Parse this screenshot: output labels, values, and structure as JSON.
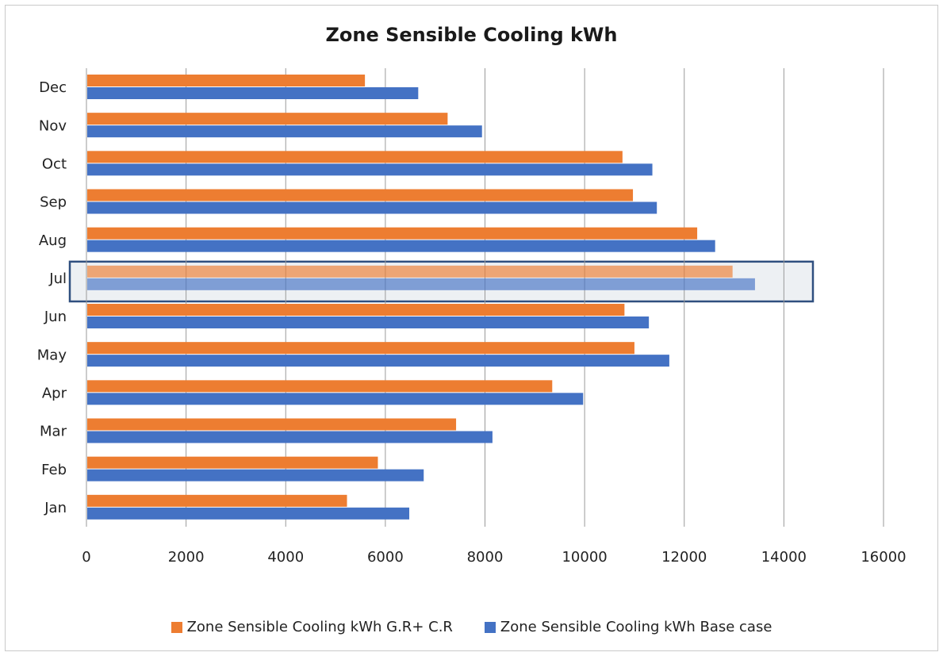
{
  "chart_data": {
    "type": "bar",
    "orientation": "horizontal",
    "title": "Zone Sensible Cooling kWh",
    "categories": [
      "Jan",
      "Feb",
      "Mar",
      "Apr",
      "May",
      "Jun",
      "Jul",
      "Aug",
      "Sep",
      "Oct",
      "Nov",
      "Dec"
    ],
    "series": [
      {
        "name": "Zone Sensible Cooling kWh G.R+ C.R",
        "color": "#ED7D31",
        "values": [
          5230,
          5850,
          7420,
          9350,
          11000,
          10800,
          12970,
          12260,
          10970,
          10760,
          7250,
          5590
        ]
      },
      {
        "name": "Zone Sensible Cooling kWh Base case",
        "color": "#4472C4",
        "values": [
          6480,
          6770,
          8150,
          9970,
          11700,
          11290,
          13420,
          12620,
          11450,
          11360,
          7940,
          6660
        ]
      }
    ],
    "xlim": [
      0,
      16000
    ],
    "xticks": [
      "0",
      "2000",
      "4000",
      "6000",
      "8000",
      "10000",
      "12000",
      "14000",
      "16000"
    ],
    "grid": true,
    "legend_position": "bottom",
    "highlighted_category": "Jul"
  }
}
